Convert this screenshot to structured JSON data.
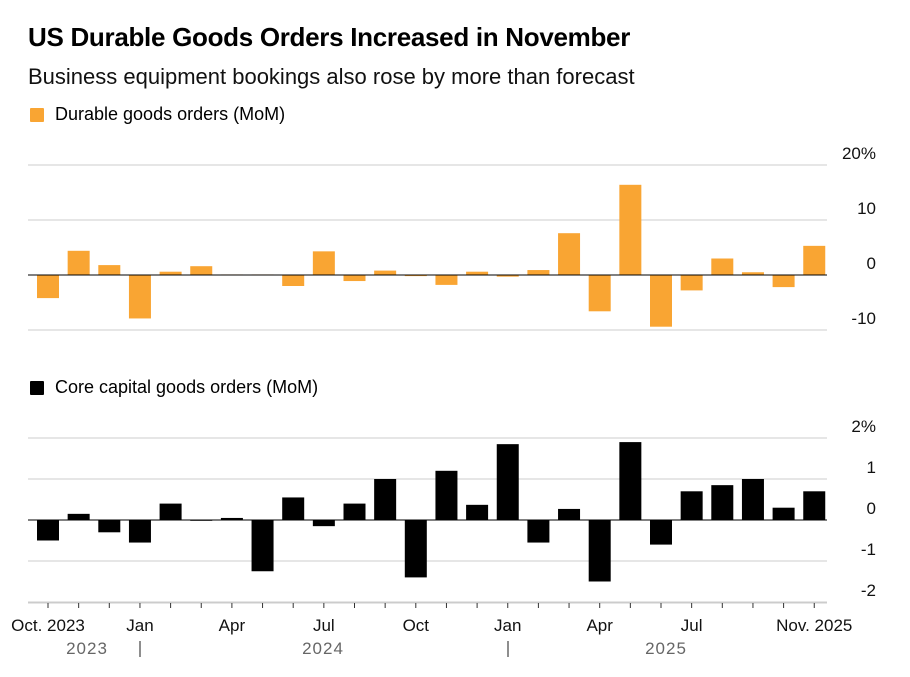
{
  "title": "US Durable Goods Orders Increased in November",
  "subtitle": "Business equipment bookings also rose by more than forecast",
  "colors": {
    "durable": "#f9a533",
    "core": "#000000",
    "grid": "#cccccc",
    "axis": "#000000"
  },
  "x_axis": {
    "month_labels": [
      "Oct. 2023",
      "Jan",
      "Apr",
      "Jul",
      "Oct",
      "Jan",
      "Apr",
      "Jul",
      "Nov. 2025"
    ],
    "year_labels": [
      "2023",
      "2024",
      "2025"
    ]
  },
  "chart_data": [
    {
      "type": "bar",
      "legend": "Durable goods orders (MoM)",
      "categories": [
        "Oct 2023",
        "Nov 2023",
        "Dec 2023",
        "Jan 2024",
        "Feb 2024",
        "Mar 2024",
        "Apr 2024",
        "May 2024",
        "Jun 2024",
        "Jul 2024",
        "Aug 2024",
        "Sep 2024",
        "Oct 2024",
        "Nov 2024",
        "Dec 2024",
        "Jan 2025",
        "Feb 2025",
        "Mar 2025",
        "Apr 2025",
        "May 2025",
        "Jun 2025",
        "Jul 2025",
        "Aug 2025",
        "Sep 2025",
        "Oct 2025",
        "Nov 2025"
      ],
      "values": [
        -4.2,
        4.4,
        1.8,
        -7.9,
        0.6,
        1.6,
        0.1,
        0.1,
        -2.0,
        4.3,
        -1.1,
        0.8,
        -0.2,
        -1.8,
        0.6,
        -0.3,
        0.9,
        7.6,
        -6.6,
        16.4,
        -9.4,
        -2.8,
        3.0,
        0.5,
        -2.2,
        5.3
      ],
      "yticks": [
        "20%",
        "10",
        "0",
        "-10"
      ],
      "ytick_values": [
        20,
        10,
        0,
        -10
      ],
      "ylim": [
        -10,
        20
      ],
      "grid": true
    },
    {
      "type": "bar",
      "legend": "Core capital goods orders (MoM)",
      "categories": [
        "Oct 2023",
        "Nov 2023",
        "Dec 2023",
        "Jan 2024",
        "Feb 2024",
        "Mar 2024",
        "Apr 2024",
        "May 2024",
        "Jun 2024",
        "Jul 2024",
        "Aug 2024",
        "Sep 2024",
        "Oct 2024",
        "Nov 2024",
        "Dec 2024",
        "Jan 2025",
        "Feb 2025",
        "Mar 2025",
        "Apr 2025",
        "May 2025",
        "Jun 2025",
        "Jul 2025",
        "Aug 2025",
        "Sep 2025",
        "Oct 2025",
        "Nov 2025"
      ],
      "values": [
        -0.5,
        0.15,
        -0.3,
        -0.55,
        0.4,
        0.0,
        0.05,
        -1.25,
        0.55,
        -0.15,
        0.4,
        1.0,
        -1.4,
        1.2,
        0.37,
        1.85,
        -0.55,
        0.27,
        -1.5,
        1.9,
        -0.6,
        0.7,
        0.85,
        1.0,
        0.3,
        0.7
      ],
      "yticks": [
        "2%",
        "1",
        "0",
        "-1",
        "-2"
      ],
      "ytick_values": [
        2,
        1,
        0,
        -1,
        -2
      ],
      "ylim": [
        -2,
        2
      ],
      "grid": true
    }
  ]
}
